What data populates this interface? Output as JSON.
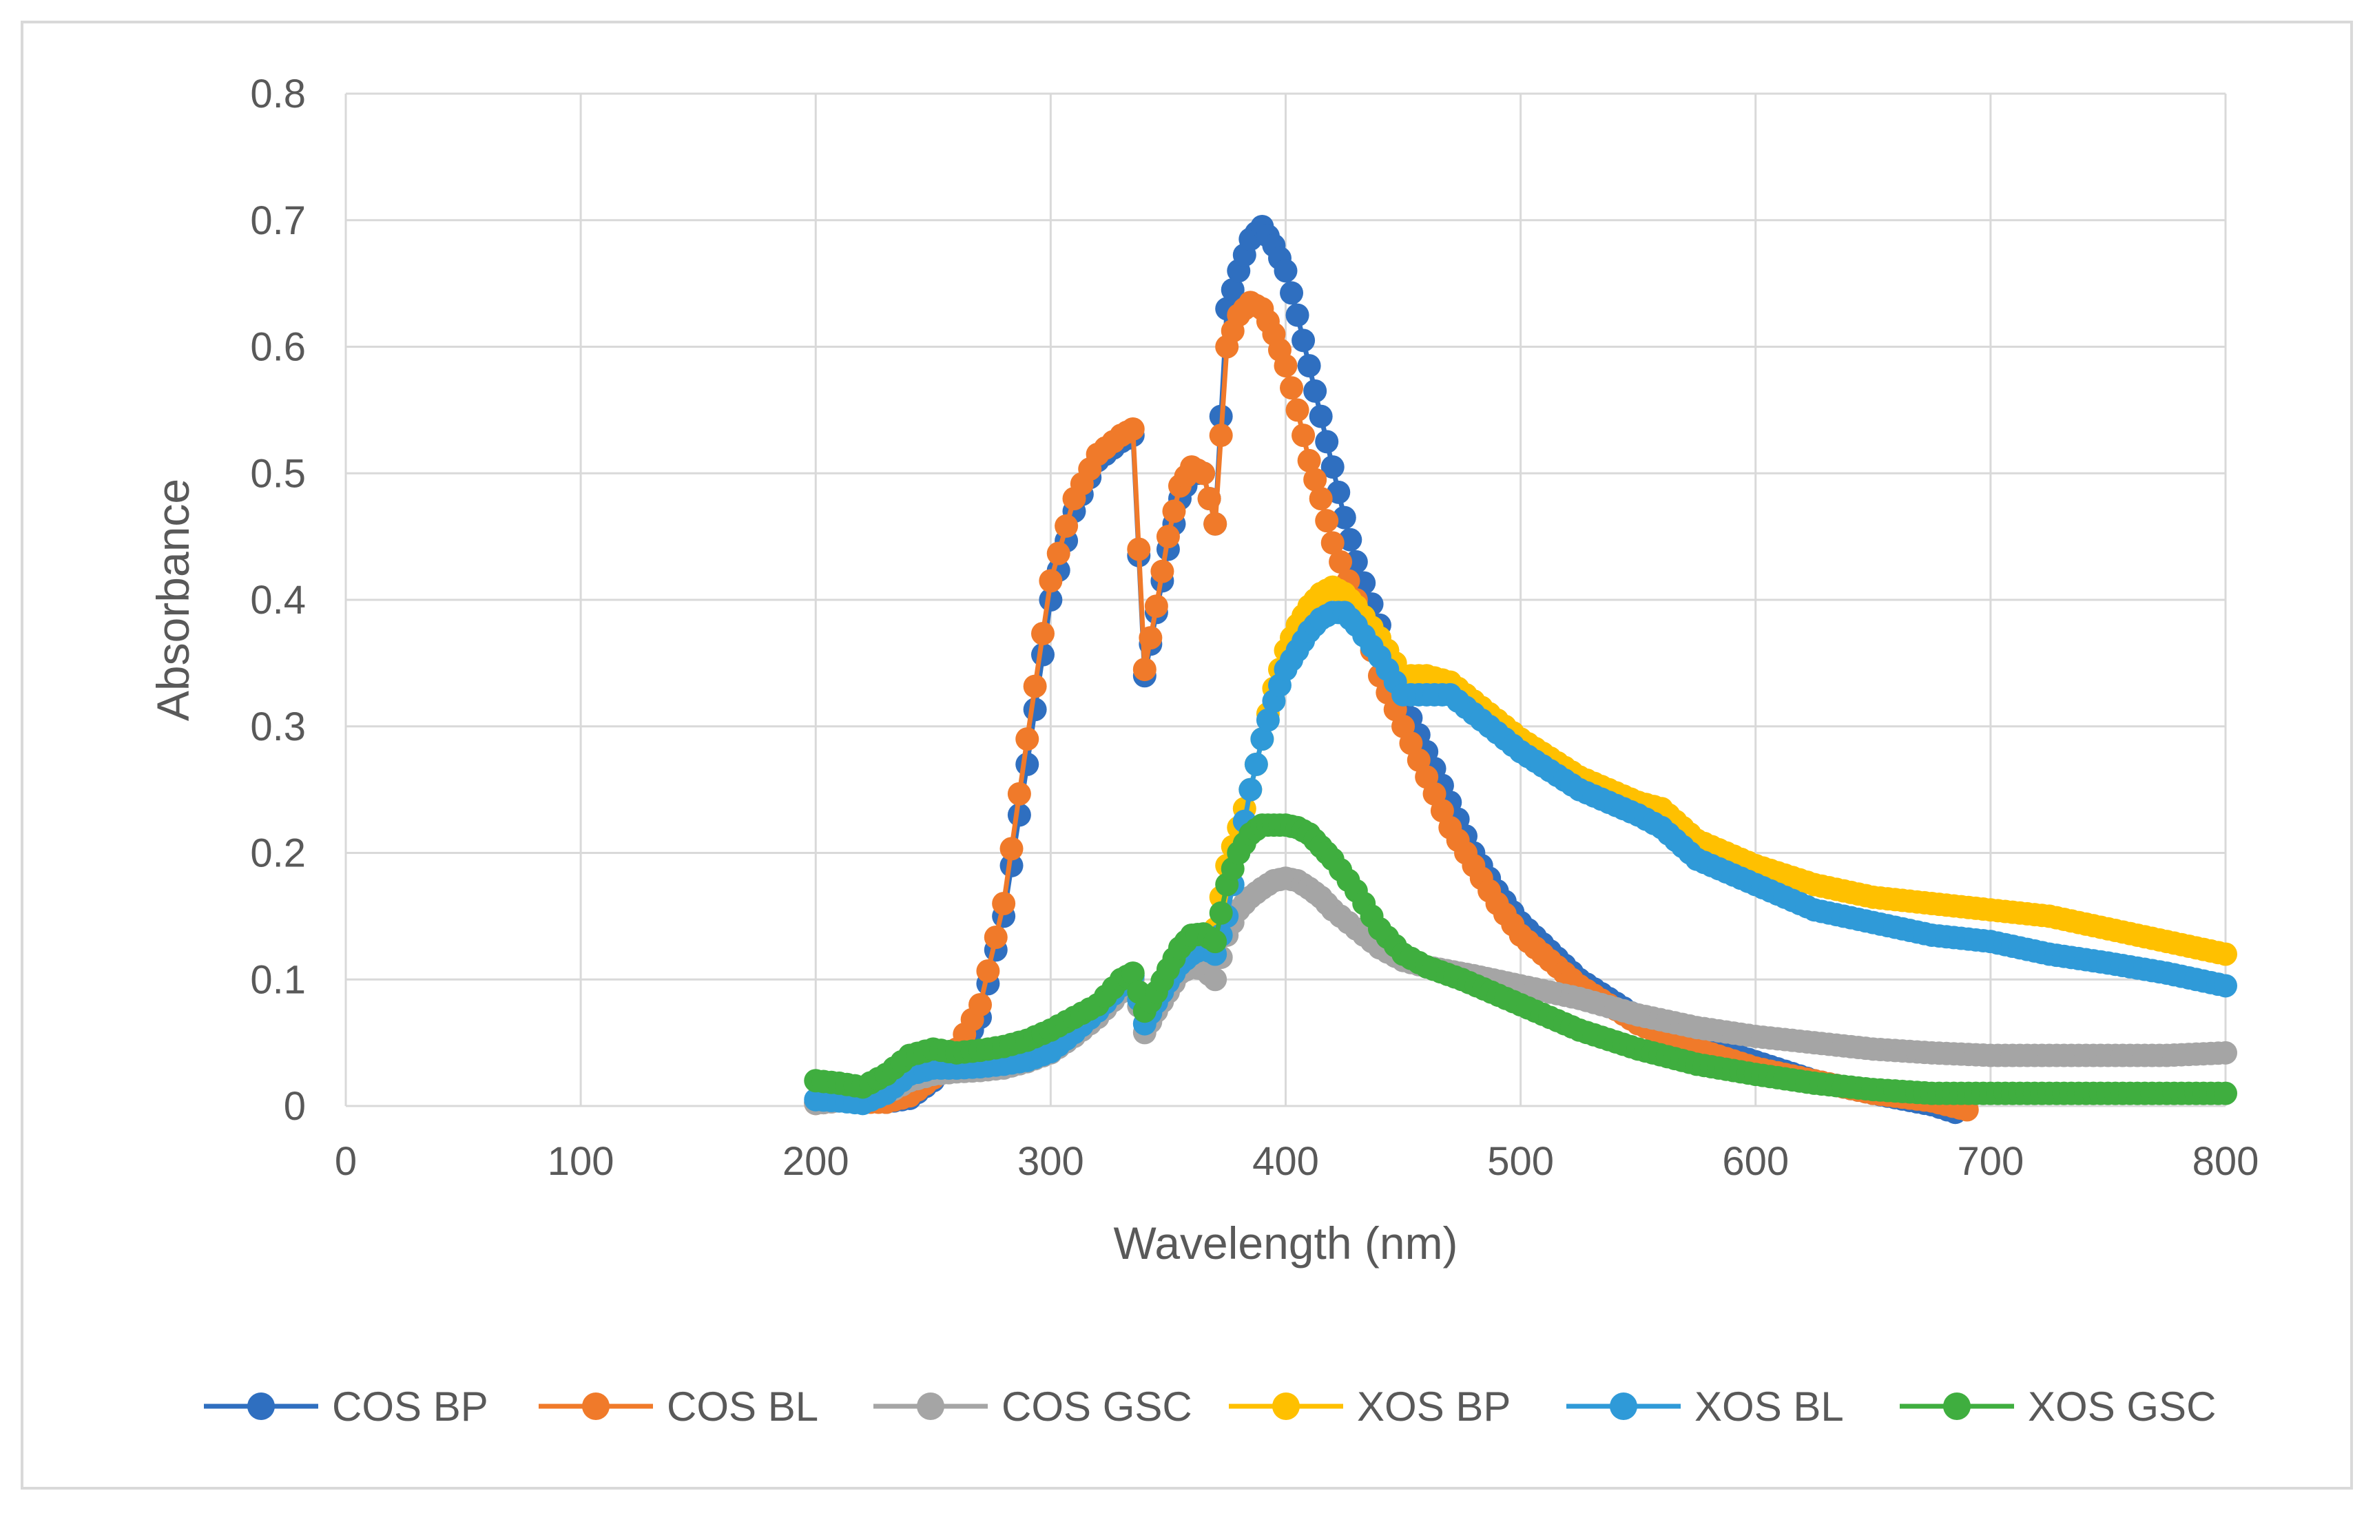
{
  "chart_data": {
    "type": "scatter",
    "xlabel": "Wavelength (nm)",
    "ylabel": "Absorbance",
    "xlim": [
      0,
      800
    ],
    "ylim": [
      0,
      0.8
    ],
    "x_ticks": [
      "0",
      "100",
      "200",
      "300",
      "400",
      "500",
      "600",
      "700",
      "800"
    ],
    "y_ticks": [
      "0",
      "0.1",
      "0.2",
      "0.3",
      "0.4",
      "0.5",
      "0.6",
      "0.7",
      "0.8"
    ],
    "grid": true,
    "legend_position": "bottom",
    "series": [
      {
        "name": "COS BP",
        "color": "#2F6FC0",
        "points": [
          [
            200,
            0.003
          ],
          [
            210,
            0.005
          ],
          [
            220,
            0.004
          ],
          [
            230,
            0.003
          ],
          [
            240,
            0.006
          ],
          [
            250,
            0.02
          ],
          [
            260,
            0.04
          ],
          [
            270,
            0.07
          ],
          [
            280,
            0.15
          ],
          [
            290,
            0.27
          ],
          [
            300,
            0.4
          ],
          [
            310,
            0.47
          ],
          [
            320,
            0.51
          ],
          [
            330,
            0.525
          ],
          [
            335,
            0.53
          ],
          [
            340,
            0.34
          ],
          [
            345,
            0.39
          ],
          [
            350,
            0.44
          ],
          [
            355,
            0.48
          ],
          [
            360,
            0.5
          ],
          [
            365,
            0.5
          ],
          [
            370,
            0.46
          ],
          [
            375,
            0.63
          ],
          [
            380,
            0.66
          ],
          [
            385,
            0.685
          ],
          [
            390,
            0.695
          ],
          [
            395,
            0.68
          ],
          [
            400,
            0.66
          ],
          [
            405,
            0.625
          ],
          [
            410,
            0.585
          ],
          [
            415,
            0.545
          ],
          [
            420,
            0.505
          ],
          [
            425,
            0.465
          ],
          [
            430,
            0.43
          ],
          [
            440,
            0.38
          ],
          [
            450,
            0.32
          ],
          [
            460,
            0.28
          ],
          [
            470,
            0.24
          ],
          [
            480,
            0.2
          ],
          [
            490,
            0.17
          ],
          [
            500,
            0.145
          ],
          [
            525,
            0.1
          ],
          [
            550,
            0.07
          ],
          [
            575,
            0.05
          ],
          [
            600,
            0.035
          ],
          [
            625,
            0.02
          ],
          [
            650,
            0.01
          ],
          [
            675,
            0.001
          ],
          [
            685,
            -0.005
          ]
        ]
      },
      {
        "name": "COS BL",
        "color": "#F07A2A",
        "points": [
          [
            200,
            0.002
          ],
          [
            210,
            0.004
          ],
          [
            220,
            0.003
          ],
          [
            230,
            0.003
          ],
          [
            240,
            0.008
          ],
          [
            250,
            0.022
          ],
          [
            260,
            0.045
          ],
          [
            270,
            0.08
          ],
          [
            280,
            0.16
          ],
          [
            290,
            0.29
          ],
          [
            300,
            0.415
          ],
          [
            310,
            0.48
          ],
          [
            320,
            0.515
          ],
          [
            330,
            0.53
          ],
          [
            335,
            0.535
          ],
          [
            340,
            0.345
          ],
          [
            345,
            0.395
          ],
          [
            350,
            0.45
          ],
          [
            355,
            0.49
          ],
          [
            360,
            0.505
          ],
          [
            365,
            0.5
          ],
          [
            370,
            0.46
          ],
          [
            375,
            0.6
          ],
          [
            380,
            0.625
          ],
          [
            385,
            0.635
          ],
          [
            390,
            0.63
          ],
          [
            395,
            0.61
          ],
          [
            400,
            0.585
          ],
          [
            405,
            0.55
          ],
          [
            410,
            0.51
          ],
          [
            415,
            0.48
          ],
          [
            420,
            0.445
          ],
          [
            430,
            0.4
          ],
          [
            440,
            0.34
          ],
          [
            450,
            0.3
          ],
          [
            460,
            0.26
          ],
          [
            470,
            0.22
          ],
          [
            480,
            0.19
          ],
          [
            490,
            0.16
          ],
          [
            500,
            0.135
          ],
          [
            525,
            0.095
          ],
          [
            550,
            0.065
          ],
          [
            575,
            0.045
          ],
          [
            600,
            0.03
          ],
          [
            625,
            0.02
          ],
          [
            650,
            0.01
          ],
          [
            675,
            0.004
          ],
          [
            690,
            -0.003
          ]
        ]
      },
      {
        "name": "COS GSC",
        "color": "#A5A5A5",
        "points": [
          [
            200,
            0.002
          ],
          [
            210,
            0.004
          ],
          [
            220,
            0.006
          ],
          [
            230,
            0.01
          ],
          [
            240,
            0.02
          ],
          [
            250,
            0.025
          ],
          [
            260,
            0.027
          ],
          [
            270,
            0.028
          ],
          [
            280,
            0.03
          ],
          [
            290,
            0.035
          ],
          [
            300,
            0.042
          ],
          [
            310,
            0.055
          ],
          [
            320,
            0.07
          ],
          [
            330,
            0.09
          ],
          [
            335,
            0.1
          ],
          [
            340,
            0.058
          ],
          [
            345,
            0.075
          ],
          [
            350,
            0.09
          ],
          [
            355,
            0.105
          ],
          [
            360,
            0.11
          ],
          [
            365,
            0.108
          ],
          [
            370,
            0.1
          ],
          [
            375,
            0.135
          ],
          [
            380,
            0.155
          ],
          [
            385,
            0.165
          ],
          [
            390,
            0.172
          ],
          [
            395,
            0.178
          ],
          [
            400,
            0.18
          ],
          [
            405,
            0.178
          ],
          [
            410,
            0.172
          ],
          [
            415,
            0.165
          ],
          [
            420,
            0.155
          ],
          [
            430,
            0.14
          ],
          [
            440,
            0.125
          ],
          [
            450,
            0.115
          ],
          [
            460,
            0.11
          ],
          [
            480,
            0.103
          ],
          [
            500,
            0.095
          ],
          [
            525,
            0.085
          ],
          [
            550,
            0.072
          ],
          [
            575,
            0.062
          ],
          [
            600,
            0.055
          ],
          [
            625,
            0.05
          ],
          [
            650,
            0.045
          ],
          [
            675,
            0.042
          ],
          [
            700,
            0.04
          ],
          [
            725,
            0.04
          ],
          [
            750,
            0.04
          ],
          [
            775,
            0.04
          ],
          [
            800,
            0.042
          ]
        ]
      },
      {
        "name": "XOS BP",
        "color": "#FFC000",
        "points": [
          [
            370,
            0.14
          ],
          [
            375,
            0.19
          ],
          [
            380,
            0.22
          ],
          [
            385,
            0.25
          ],
          [
            390,
            0.29
          ],
          [
            395,
            0.33
          ],
          [
            400,
            0.36
          ],
          [
            405,
            0.38
          ],
          [
            410,
            0.395
          ],
          [
            415,
            0.405
          ],
          [
            420,
            0.41
          ],
          [
            425,
            0.405
          ],
          [
            430,
            0.395
          ],
          [
            440,
            0.37
          ],
          [
            450,
            0.34
          ],
          [
            460,
            0.34
          ],
          [
            470,
            0.335
          ],
          [
            480,
            0.32
          ],
          [
            490,
            0.305
          ],
          [
            500,
            0.29
          ],
          [
            525,
            0.26
          ],
          [
            550,
            0.24
          ],
          [
            560,
            0.235
          ],
          [
            575,
            0.21
          ],
          [
            600,
            0.19
          ],
          [
            625,
            0.175
          ],
          [
            650,
            0.165
          ],
          [
            675,
            0.16
          ],
          [
            700,
            0.155
          ],
          [
            725,
            0.15
          ],
          [
            750,
            0.14
          ],
          [
            775,
            0.13
          ],
          [
            800,
            0.12
          ]
        ]
      },
      {
        "name": "XOS BL",
        "color": "#2F9AD8",
        "points": [
          [
            200,
            0.005
          ],
          [
            210,
            0.004
          ],
          [
            220,
            0.002
          ],
          [
            230,
            0.01
          ],
          [
            240,
            0.025
          ],
          [
            250,
            0.03
          ],
          [
            260,
            0.03
          ],
          [
            270,
            0.031
          ],
          [
            280,
            0.033
          ],
          [
            290,
            0.036
          ],
          [
            300,
            0.043
          ],
          [
            310,
            0.058
          ],
          [
            320,
            0.075
          ],
          [
            330,
            0.095
          ],
          [
            335,
            0.103
          ],
          [
            340,
            0.065
          ],
          [
            345,
            0.082
          ],
          [
            350,
            0.098
          ],
          [
            355,
            0.112
          ],
          [
            360,
            0.12
          ],
          [
            365,
            0.125
          ],
          [
            370,
            0.12
          ],
          [
            375,
            0.15
          ],
          [
            380,
            0.2
          ],
          [
            385,
            0.25
          ],
          [
            390,
            0.29
          ],
          [
            395,
            0.32
          ],
          [
            400,
            0.345
          ],
          [
            405,
            0.36
          ],
          [
            410,
            0.375
          ],
          [
            415,
            0.385
          ],
          [
            420,
            0.39
          ],
          [
            425,
            0.39
          ],
          [
            430,
            0.38
          ],
          [
            440,
            0.355
          ],
          [
            450,
            0.325
          ],
          [
            460,
            0.325
          ],
          [
            470,
            0.325
          ],
          [
            480,
            0.31
          ],
          [
            490,
            0.295
          ],
          [
            500,
            0.28
          ],
          [
            525,
            0.25
          ],
          [
            550,
            0.23
          ],
          [
            560,
            0.22
          ],
          [
            575,
            0.195
          ],
          [
            600,
            0.175
          ],
          [
            625,
            0.155
          ],
          [
            650,
            0.145
          ],
          [
            675,
            0.135
          ],
          [
            700,
            0.13
          ],
          [
            725,
            0.12
          ],
          [
            750,
            0.113
          ],
          [
            775,
            0.105
          ],
          [
            800,
            0.095
          ]
        ]
      },
      {
        "name": "XOS GSC",
        "color": "#3FAE3F",
        "points": [
          [
            200,
            0.02
          ],
          [
            210,
            0.018
          ],
          [
            220,
            0.015
          ],
          [
            230,
            0.025
          ],
          [
            240,
            0.04
          ],
          [
            250,
            0.045
          ],
          [
            260,
            0.042
          ],
          [
            270,
            0.044
          ],
          [
            280,
            0.047
          ],
          [
            290,
            0.052
          ],
          [
            300,
            0.06
          ],
          [
            310,
            0.07
          ],
          [
            320,
            0.08
          ],
          [
            330,
            0.1
          ],
          [
            335,
            0.105
          ],
          [
            340,
            0.075
          ],
          [
            345,
            0.09
          ],
          [
            350,
            0.108
          ],
          [
            355,
            0.125
          ],
          [
            360,
            0.135
          ],
          [
            365,
            0.136
          ],
          [
            370,
            0.13
          ],
          [
            375,
            0.175
          ],
          [
            380,
            0.2
          ],
          [
            385,
            0.215
          ],
          [
            390,
            0.222
          ],
          [
            395,
            0.222
          ],
          [
            400,
            0.222
          ],
          [
            405,
            0.22
          ],
          [
            410,
            0.215
          ],
          [
            415,
            0.205
          ],
          [
            420,
            0.195
          ],
          [
            430,
            0.17
          ],
          [
            440,
            0.14
          ],
          [
            450,
            0.12
          ],
          [
            460,
            0.11
          ],
          [
            475,
            0.1
          ],
          [
            500,
            0.08
          ],
          [
            525,
            0.06
          ],
          [
            550,
            0.045
          ],
          [
            575,
            0.033
          ],
          [
            600,
            0.025
          ],
          [
            625,
            0.018
          ],
          [
            650,
            0.013
          ],
          [
            675,
            0.01
          ],
          [
            700,
            0.01
          ],
          [
            725,
            0.01
          ],
          [
            750,
            0.01
          ],
          [
            775,
            0.01
          ],
          [
            800,
            0.01
          ]
        ]
      }
    ]
  }
}
